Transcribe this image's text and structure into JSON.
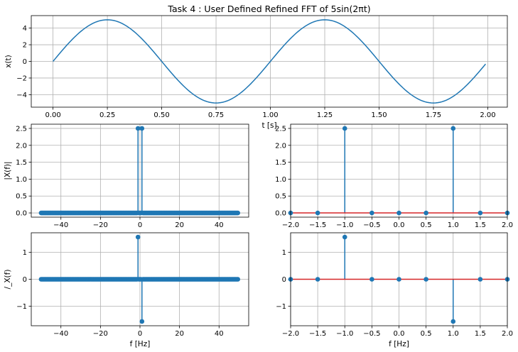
{
  "figure_title": "Task 4 : User Defined Refined FFT of 5sin(2πt)",
  "colors": {
    "line": "#1f77b4",
    "stem": "#1f77b4",
    "baseline": "#d62728",
    "grid": "#b0b0b0",
    "axes": "#000000"
  },
  "chart_data": [
    {
      "id": "time_signal",
      "type": "line",
      "title": "Task 4 : User Defined Refined FFT of 5sin(2πt)",
      "xlabel": "t [s]",
      "ylabel": "x(t)",
      "xlim": [
        -0.1,
        2.09
      ],
      "ylim": [
        -5.5,
        5.5
      ],
      "xticks": [
        0.0,
        0.25,
        0.5,
        0.75,
        1.0,
        1.25,
        1.5,
        1.75,
        2.0
      ],
      "xticklabels": [
        "0.00",
        "0.25",
        "0.50",
        "0.75",
        "1.00",
        "1.25",
        "1.50",
        "1.75",
        "2.00"
      ],
      "yticks": [
        -4,
        -2,
        0,
        2,
        4
      ],
      "yticklabels": [
        "−4",
        "−2",
        "0",
        "2",
        "4"
      ],
      "series": [
        {
          "function": "5*sin(2*pi*t)",
          "x_start": 0.0,
          "x_end": 1.99,
          "x_step": 0.01
        }
      ],
      "grid": true
    },
    {
      "id": "magnitude_full",
      "type": "stem",
      "xlabel": "",
      "ylabel": "|X(f)|",
      "xlim": [
        -55,
        55
      ],
      "ylim": [
        -0.125,
        2.625
      ],
      "xticks": [
        -40,
        -20,
        0,
        20,
        40
      ],
      "xticklabels": [
        "−40",
        "−20",
        "0",
        "20",
        "40"
      ],
      "yticks": [
        0.0,
        0.5,
        1.0,
        1.5,
        2.0,
        2.5
      ],
      "yticklabels": [
        "0.0",
        "0.5",
        "1.0",
        "1.5",
        "2.0",
        "2.5"
      ],
      "frequency_grid": {
        "start": -50,
        "end": 49.5,
        "step": 0.5
      },
      "nonzero": [
        {
          "x": -1,
          "y": 2.5
        },
        {
          "x": 1,
          "y": 2.5
        }
      ],
      "grid": true
    },
    {
      "id": "magnitude_zoom",
      "type": "stem",
      "xlabel": "",
      "ylabel": "",
      "xlim": [
        -2,
        2
      ],
      "ylim": [
        -0.125,
        2.625
      ],
      "xticks": [
        -2.0,
        -1.5,
        -1.0,
        -0.5,
        0.0,
        0.5,
        1.0,
        1.5,
        2.0
      ],
      "xticklabels": [
        "−2.0",
        "−1.5",
        "−1.0",
        "−0.5",
        "0.0",
        "0.5",
        "1.0",
        "1.5",
        "2.0"
      ],
      "yticks": [
        0.0,
        0.5,
        1.0,
        1.5,
        2.0,
        2.5
      ],
      "yticklabels": [
        "0.0",
        "0.5",
        "1.0",
        "1.5",
        "2.0",
        "2.5"
      ],
      "x": [
        -2.0,
        -1.5,
        -1.0,
        -0.5,
        0.0,
        0.5,
        1.0,
        1.5,
        2.0
      ],
      "y": [
        0,
        0,
        2.5,
        0,
        0,
        0,
        2.5,
        0,
        0
      ],
      "grid": true
    },
    {
      "id": "phase_full",
      "type": "stem",
      "xlabel": "f [Hz]",
      "ylabel": "/_X(f)",
      "xlim": [
        -55,
        55
      ],
      "ylim": [
        -1.73,
        1.73
      ],
      "xticks": [
        -40,
        -20,
        0,
        20,
        40
      ],
      "xticklabels": [
        "−40",
        "−20",
        "0",
        "20",
        "40"
      ],
      "yticks": [
        -1,
        0,
        1
      ],
      "yticklabels": [
        "−1",
        "0",
        "1"
      ],
      "frequency_grid": {
        "start": -50,
        "end": 49.5,
        "step": 0.5
      },
      "nonzero": [
        {
          "x": -1,
          "y": 1.5708
        },
        {
          "x": 1,
          "y": -1.5708
        }
      ],
      "grid": true
    },
    {
      "id": "phase_zoom",
      "type": "stem",
      "xlabel": "f [Hz]",
      "ylabel": "",
      "xlim": [
        -2,
        2
      ],
      "ylim": [
        -1.73,
        1.73
      ],
      "xticks": [
        -2.0,
        -1.5,
        -1.0,
        -0.5,
        0.0,
        0.5,
        1.0,
        1.5,
        2.0
      ],
      "xticklabels": [
        "−2.0",
        "−1.5",
        "−1.0",
        "−0.5",
        "0.0",
        "0.5",
        "1.0",
        "1.5",
        "2.0"
      ],
      "yticks": [
        -1,
        0,
        1
      ],
      "yticklabels": [
        "−1",
        "0",
        "1"
      ],
      "x": [
        -2.0,
        -1.5,
        -1.0,
        -0.5,
        0.0,
        0.5,
        1.0,
        1.5,
        2.0
      ],
      "y": [
        0,
        0,
        1.5708,
        0,
        0,
        0,
        -1.5708,
        0,
        0
      ],
      "grid": true
    }
  ]
}
